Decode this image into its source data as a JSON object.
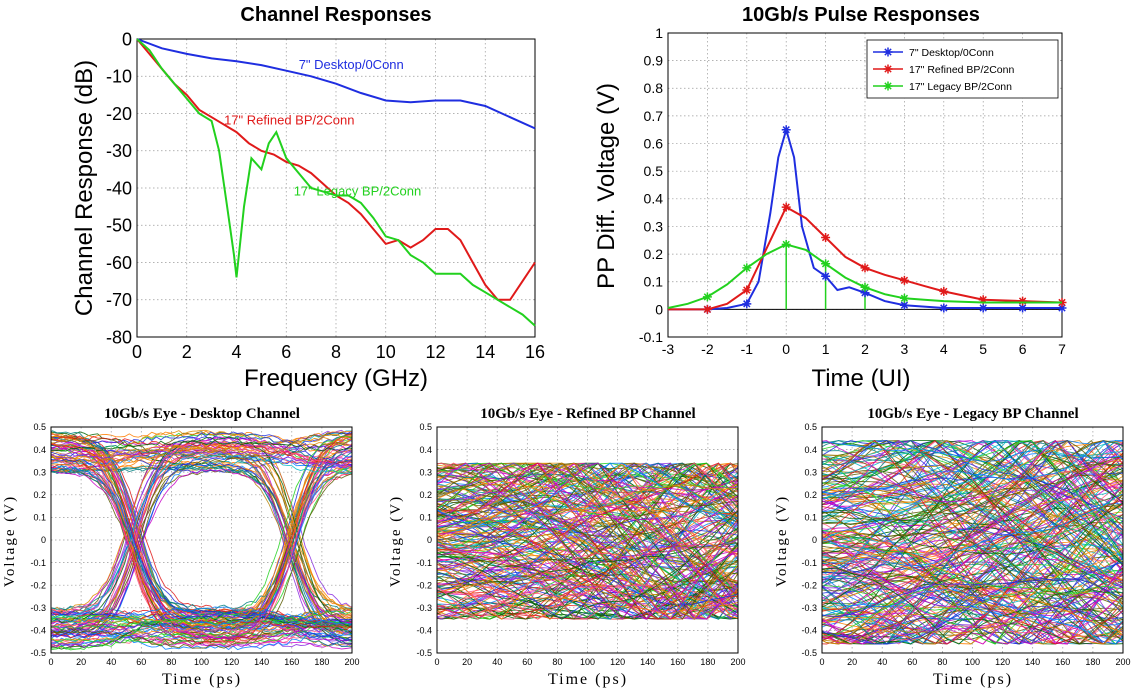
{
  "colors": {
    "desktop": "#1f2ee0",
    "refined": "#e01a1a",
    "legacy": "#22d11e",
    "grid": "#9a9a9a"
  },
  "chart_data": [
    {
      "id": "channel",
      "type": "line",
      "title": "Channel Responses",
      "xlabel": "Frequency (GHz)",
      "ylabel": "Channel Response (dB)",
      "xlim": [
        0,
        16
      ],
      "ylim": [
        -80,
        0
      ],
      "xticks": [
        0,
        2,
        4,
        6,
        8,
        10,
        12,
        14,
        16
      ],
      "yticks": [
        0,
        -10,
        -20,
        -30,
        -40,
        -50,
        -60,
        -70,
        -80
      ],
      "grid": true,
      "annotations": [
        {
          "text": "7\" Desktop/0Conn",
          "x": 6.5,
          "y": -8,
          "series": "desktop"
        },
        {
          "text": "17\" Refined BP/2Conn",
          "x": 3.5,
          "y": -23,
          "series": "refined"
        },
        {
          "text": "17\" Legacy BP/2Conn",
          "x": 6.3,
          "y": -42,
          "series": "legacy"
        }
      ],
      "series": [
        {
          "key": "desktop",
          "x": [
            0,
            1,
            2,
            3,
            4,
            5,
            6,
            7,
            8,
            9,
            10,
            11,
            12,
            13,
            14,
            15,
            16
          ],
          "y": [
            0,
            -2.5,
            -4,
            -5.2,
            -6,
            -7,
            -8.5,
            -10,
            -12,
            -14.5,
            -16.5,
            -17,
            -16.5,
            -16.5,
            -18,
            -21,
            -24
          ]
        },
        {
          "key": "refined",
          "x": [
            0,
            0.5,
            1,
            1.5,
            2,
            2.5,
            3,
            3.5,
            4,
            4.5,
            5,
            5.5,
            6,
            6.5,
            7,
            7.5,
            8,
            8.5,
            9,
            9.5,
            10,
            10.5,
            11,
            11.5,
            12,
            12.5,
            13,
            13.5,
            14,
            14.5,
            15,
            15.5,
            16
          ],
          "y": [
            0,
            -4,
            -8,
            -12,
            -15,
            -19,
            -21,
            -23,
            -25,
            -28,
            -30,
            -31,
            -33,
            -34,
            -36,
            -39,
            -42,
            -44,
            -47,
            -51,
            -55,
            -54,
            -56,
            -54,
            -51,
            -51,
            -54,
            -60,
            -66,
            -70,
            -70,
            -65,
            -60
          ]
        },
        {
          "key": "legacy",
          "x": [
            0,
            0.5,
            1,
            1.5,
            2,
            2.5,
            3,
            3.3,
            3.6,
            3.9,
            4,
            4.3,
            4.6,
            5,
            5.3,
            5.6,
            6,
            6.5,
            7,
            7.5,
            8,
            8.5,
            9,
            9.5,
            10,
            10.5,
            11,
            11.5,
            12,
            12.5,
            13,
            13.5,
            14,
            14.5,
            15,
            15.5,
            16
          ],
          "y": [
            0,
            -3,
            -8,
            -12,
            -16,
            -20,
            -22,
            -30,
            -44,
            -58,
            -64,
            -45,
            -32,
            -35,
            -28,
            -25,
            -32,
            -36,
            -40,
            -41,
            -42,
            -42,
            -44,
            -48,
            -53,
            -54,
            -58,
            -60,
            -63,
            -63,
            -63,
            -66,
            -68,
            -70,
            -72,
            -74,
            -77
          ]
        }
      ]
    },
    {
      "id": "pulse",
      "type": "line",
      "title": "10Gb/s Pulse Responses",
      "xlabel": "Time (UI)",
      "ylabel": "PP Diff. Voltage (V)",
      "xlim": [
        -3,
        7
      ],
      "ylim": [
        -0.1,
        1
      ],
      "xticks": [
        -3,
        -2,
        -1,
        0,
        1,
        2,
        3,
        4,
        5,
        6,
        7
      ],
      "yticks": [
        -0.1,
        0,
        0.1,
        0.2,
        0.3,
        0.4,
        0.5,
        0.6,
        0.7,
        0.8,
        0.9,
        1
      ],
      "grid": true,
      "legend": {
        "placement": "top-right",
        "entries": [
          {
            "key": "desktop",
            "label": "7\" Desktop/0Conn"
          },
          {
            "key": "refined",
            "label": "17\" Refined BP/2Conn"
          },
          {
            "key": "legacy",
            "label": "17\" Legacy BP/2Conn"
          }
        ]
      },
      "series": [
        {
          "key": "desktop",
          "x": [
            -3,
            -2,
            -1.5,
            -1,
            -0.7,
            -0.4,
            -0.2,
            0,
            0.2,
            0.4,
            0.7,
            1,
            1.3,
            1.6,
            2,
            2.5,
            3,
            4,
            5,
            6,
            7
          ],
          "y": [
            0,
            0,
            0.005,
            0.02,
            0.1,
            0.35,
            0.55,
            0.65,
            0.55,
            0.3,
            0.15,
            0.12,
            0.07,
            0.08,
            0.06,
            0.03,
            0.015,
            0.005,
            0.005,
            0.005,
            0.005
          ],
          "markers": {
            "x": [
              -2,
              -1,
              0,
              1,
              2,
              3,
              4,
              5,
              6,
              7
            ],
            "y": [
              0,
              0.02,
              0.65,
              0.12,
              0.06,
              0.015,
              0.005,
              0.005,
              0.005,
              0.005
            ]
          }
        },
        {
          "key": "refined",
          "x": [
            -3,
            -2,
            -1.5,
            -1,
            -0.5,
            0,
            0.5,
            1,
            1.5,
            2,
            2.5,
            3,
            3.5,
            4,
            5,
            6,
            7
          ],
          "y": [
            0,
            0,
            0.02,
            0.07,
            0.22,
            0.37,
            0.33,
            0.26,
            0.19,
            0.15,
            0.125,
            0.105,
            0.085,
            0.065,
            0.035,
            0.03,
            0.025
          ],
          "markers": {
            "x": [
              -2,
              -1,
              0,
              1,
              2,
              3,
              4,
              5,
              6,
              7
            ],
            "y": [
              0,
              0.07,
              0.37,
              0.26,
              0.15,
              0.105,
              0.065,
              0.035,
              0.03,
              0.025
            ]
          }
        },
        {
          "key": "legacy",
          "x": [
            -3,
            -2.5,
            -2,
            -1.5,
            -1,
            -0.5,
            0,
            0.5,
            1,
            1.5,
            2,
            2.5,
            3,
            3.5,
            4,
            5,
            6,
            7
          ],
          "y": [
            0.005,
            0.02,
            0.045,
            0.09,
            0.15,
            0.2,
            0.235,
            0.215,
            0.165,
            0.115,
            0.08,
            0.055,
            0.04,
            0.035,
            0.03,
            0.025,
            0.025,
            0.025
          ],
          "markers": {
            "x": [
              -2,
              -1,
              0,
              1,
              2,
              3
            ],
            "y": [
              0.045,
              0.15,
              0.235,
              0.165,
              0.08,
              0.04
            ]
          }
        }
      ],
      "stems": {
        "key": "legacy",
        "x": [
          0,
          1,
          2
        ],
        "y": [
          0.235,
          0.165,
          0.08
        ]
      }
    },
    {
      "id": "eye1",
      "type": "eye",
      "title": "10Gb/s Eye - Desktop Channel",
      "xlabel": "Time (ps)",
      "ylabel": "Voltage (V)",
      "xlim": [
        0,
        200
      ],
      "ylim": [
        -0.5,
        0.5
      ],
      "xticks": [
        0,
        20,
        40,
        60,
        80,
        100,
        120,
        140,
        160,
        180,
        200
      ],
      "yticks": [
        -0.5,
        -0.4,
        -0.3,
        -0.2,
        -0.1,
        0,
        0.1,
        0.2,
        0.3,
        0.4,
        0.5
      ],
      "grid": true,
      "crossings_ps": [
        55,
        160
      ],
      "rail_high": [
        0.3,
        0.48
      ],
      "rail_low": [
        -0.48,
        -0.3
      ],
      "traces": 140
    },
    {
      "id": "eye2",
      "type": "eye",
      "title": "10Gb/s Eye - Refined BP Channel",
      "xlabel": "Time (ps)",
      "ylabel": "Voltage (V)",
      "xlim": [
        0,
        200
      ],
      "ylim": [
        -0.5,
        0.5
      ],
      "xticks": [
        0,
        20,
        40,
        60,
        80,
        100,
        120,
        140,
        160,
        180,
        200
      ],
      "yticks": [
        -0.5,
        -0.4,
        -0.3,
        -0.2,
        -0.1,
        0,
        0.1,
        0.2,
        0.3,
        0.4,
        0.5
      ],
      "grid": true,
      "envelope": [
        -0.35,
        0.34
      ],
      "traces": 220
    },
    {
      "id": "eye3",
      "type": "eye",
      "title": "10Gb/s Eye - Legacy BP Channel",
      "xlabel": "Time (ps)",
      "ylabel": "Voltage (V)",
      "xlim": [
        0,
        200
      ],
      "ylim": [
        -0.5,
        0.5
      ],
      "xticks": [
        0,
        20,
        40,
        60,
        80,
        100,
        120,
        140,
        160,
        180,
        200
      ],
      "yticks": [
        -0.5,
        -0.4,
        -0.3,
        -0.2,
        -0.1,
        0,
        0.1,
        0.2,
        0.3,
        0.4,
        0.5
      ],
      "grid": true,
      "envelope": [
        -0.46,
        0.44
      ],
      "traces": 240
    }
  ]
}
